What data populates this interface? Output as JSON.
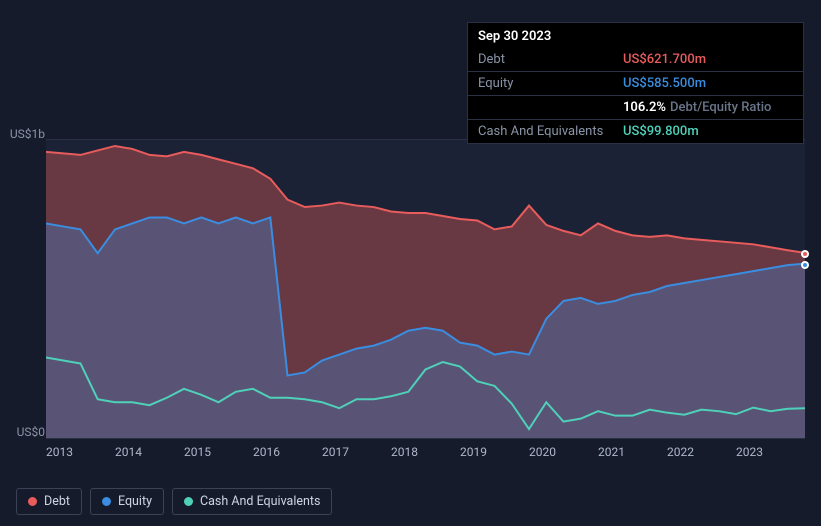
{
  "tooltip": {
    "date": "Sep 30 2023",
    "rows": {
      "debt": {
        "label": "Debt",
        "value": "US$621.700m"
      },
      "equity": {
        "label": "Equity",
        "value": "US$585.500m"
      },
      "ratio": {
        "pct": "106.2%",
        "label": "Debt/Equity Ratio"
      },
      "cash": {
        "label": "Cash And Equivalents",
        "value": "US$99.800m"
      }
    }
  },
  "chart": {
    "type": "area-line",
    "y_axis": {
      "min": 0,
      "max": 1000,
      "top_label": "US$1b",
      "bottom_label": "US$0"
    },
    "x_axis": {
      "ticks": [
        "2013",
        "2014",
        "2015",
        "2016",
        "2017",
        "2018",
        "2019",
        "2020",
        "2021",
        "2022",
        "2023"
      ]
    },
    "plot_bg": "#1b2235",
    "page_bg": "#151b2b",
    "grid_color": "#2a3142",
    "series": {
      "debt": {
        "label": "Debt",
        "line_color": "#e85c5c",
        "fill_color": "rgba(232,92,92,0.38)",
        "type": "area",
        "values": [
          960,
          955,
          950,
          965,
          980,
          970,
          950,
          945,
          960,
          950,
          935,
          920,
          905,
          870,
          800,
          775,
          780,
          790,
          780,
          775,
          760,
          755,
          755,
          745,
          735,
          730,
          700,
          710,
          780,
          715,
          695,
          680,
          720,
          695,
          680,
          675,
          680,
          670,
          665,
          660,
          655,
          650,
          640,
          630,
          621
        ]
      },
      "equity": {
        "label": "Equity",
        "line_color": "#3a8de0",
        "fill_color": "rgba(58,141,224,0.32)",
        "type": "area",
        "values": [
          720,
          710,
          700,
          620,
          700,
          720,
          740,
          740,
          720,
          740,
          720,
          740,
          720,
          740,
          210,
          220,
          260,
          280,
          300,
          310,
          330,
          360,
          370,
          360,
          320,
          310,
          280,
          290,
          280,
          400,
          460,
          470,
          450,
          460,
          480,
          490,
          510,
          520,
          530,
          540,
          550,
          560,
          570,
          580,
          585
        ]
      },
      "cash": {
        "label": "Cash And Equivalents",
        "line_color": "#4fd1b9",
        "fill_color": "none",
        "type": "line",
        "values": [
          270,
          260,
          250,
          130,
          120,
          120,
          110,
          135,
          165,
          145,
          120,
          155,
          165,
          135,
          135,
          130,
          120,
          100,
          130,
          130,
          140,
          155,
          230,
          255,
          240,
          190,
          175,
          115,
          30,
          120,
          55,
          65,
          90,
          75,
          75,
          95,
          85,
          78,
          95,
          90,
          80,
          102,
          90,
          98,
          100
        ]
      }
    },
    "markers": [
      {
        "series": "debt",
        "at_end": true,
        "color": "#e85c5c"
      },
      {
        "series": "equity",
        "at_end": true,
        "color": "#3a8de0"
      }
    ]
  },
  "legend": [
    {
      "key": "debt",
      "label": "Debt",
      "color": "#e85c5c"
    },
    {
      "key": "equity",
      "label": "Equity",
      "color": "#3a8de0"
    },
    {
      "key": "cash",
      "label": "Cash And Equivalents",
      "color": "#4fd1b9"
    }
  ]
}
